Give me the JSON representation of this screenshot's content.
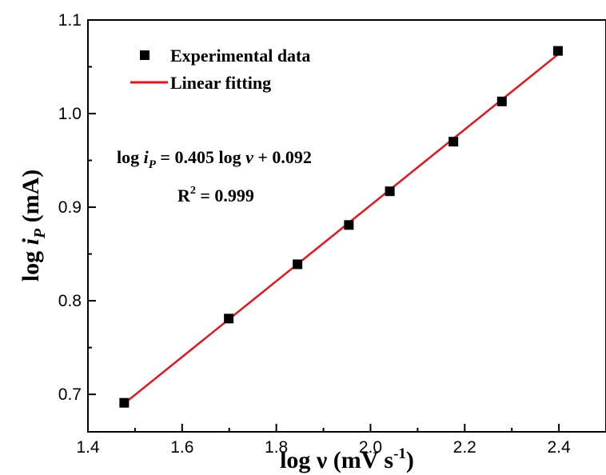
{
  "chart_data": {
    "type": "scatter",
    "xlabel": "log ν (mV s",
    "xlabel_sup": "-1",
    "xlabel_end": ")",
    "ylabel_pre": "log ",
    "ylabel_i": "i",
    "ylabel_sub": "P",
    "ylabel_post": " (mA)",
    "xlim": [
      1.4,
      2.5
    ],
    "ylim": [
      0.66,
      1.1
    ],
    "xticks": [
      1.4,
      1.6,
      1.8,
      2.0,
      2.2,
      2.4
    ],
    "xtick_labels": [
      "1.4",
      "1.6",
      "1.8",
      "2.0",
      "2.2",
      "2.4"
    ],
    "yticks": [
      0.7,
      0.8,
      0.9,
      1.0,
      1.1
    ],
    "ytick_labels": [
      "0.7",
      "0.8",
      "0.9",
      "1.0",
      "1.1"
    ],
    "grid": false,
    "legend_position": "top-left",
    "series": [
      {
        "name": "Experimental data",
        "kind": "scatter",
        "marker": "square",
        "color": "#000000",
        "x": [
          1.477,
          1.699,
          1.845,
          1.954,
          2.041,
          2.176,
          2.279,
          2.398
        ],
        "y": [
          0.691,
          0.781,
          0.839,
          0.881,
          0.917,
          0.97,
          1.013,
          1.067
        ]
      },
      {
        "name": "Linear fitting",
        "kind": "line",
        "color": "#e8141b",
        "slope": 0.405,
        "intercept": 0.092,
        "x_range": [
          1.477,
          2.398
        ]
      }
    ],
    "annotations": {
      "eq_pre": "log ",
      "eq_i": "i",
      "eq_sub": "P",
      "eq_mid": " = 0.405 log ",
      "eq_nu": "ν",
      "eq_post": " + 0.092",
      "r2_base": "R",
      "r2_sup": "2",
      "r2_post": " = 0.999"
    }
  }
}
